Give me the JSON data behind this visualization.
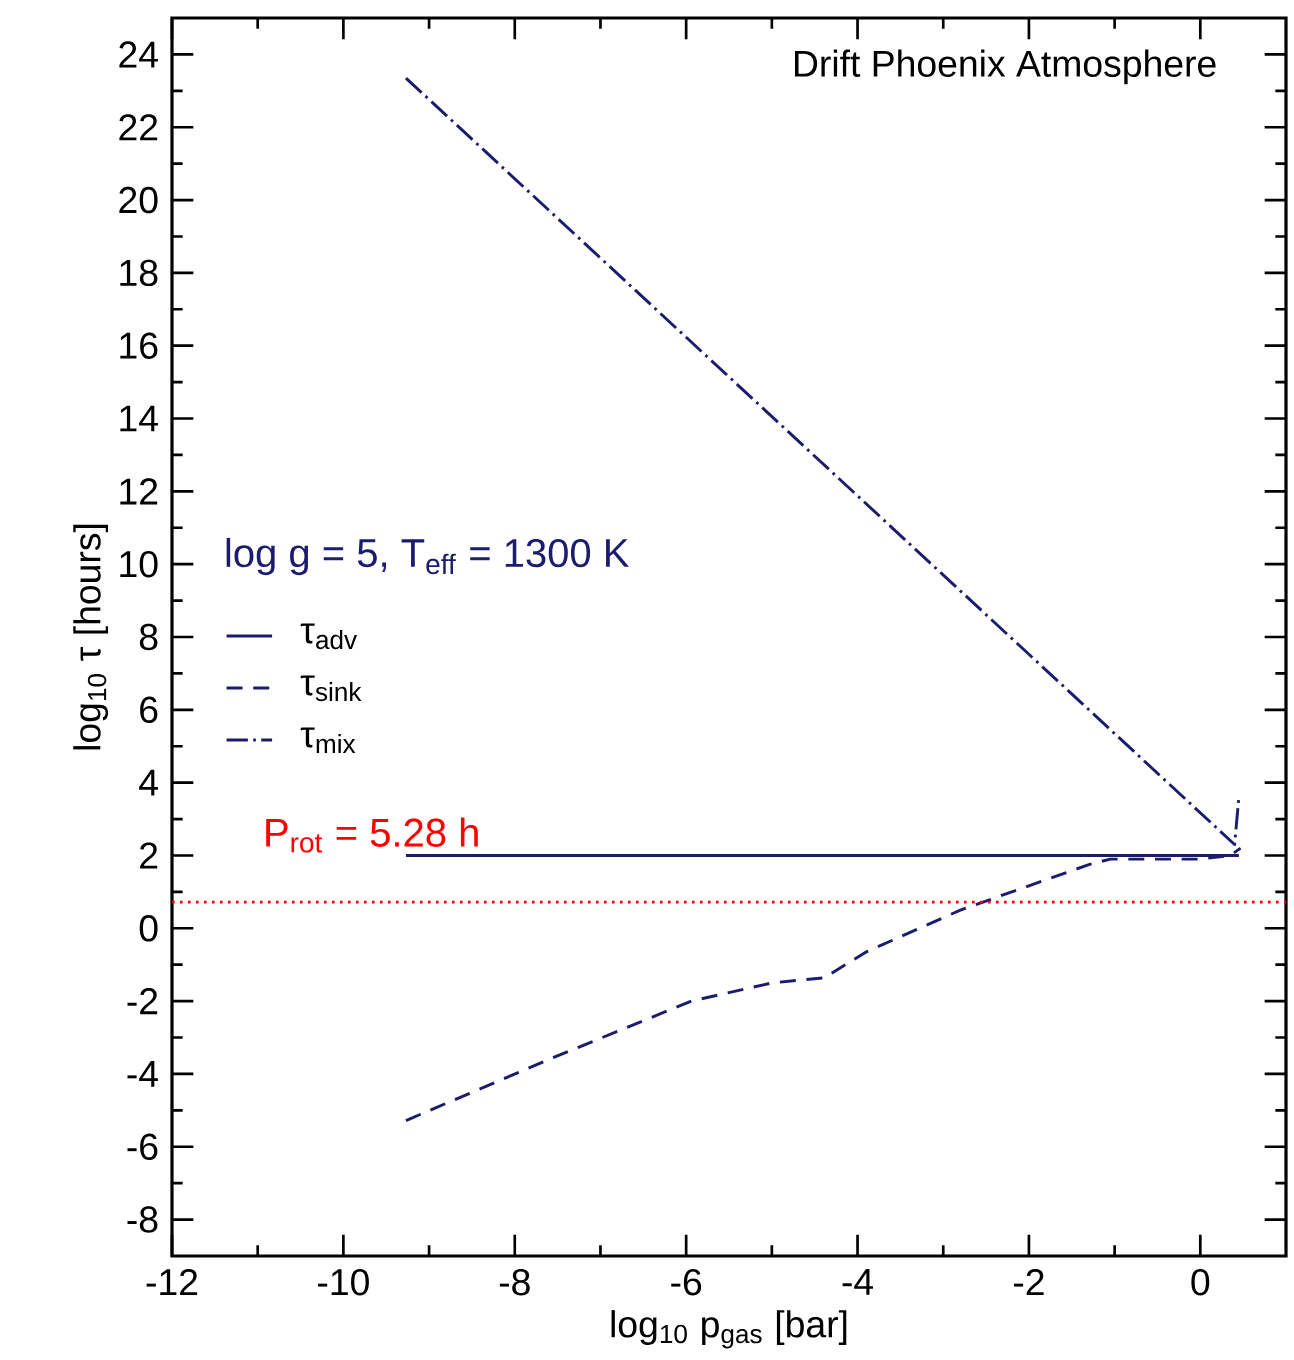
{
  "chart_data": {
    "type": "line",
    "title": "Drift Phoenix Atmosphere",
    "xlabel": "log$_{10}$ p$_{gas}$ [bar]",
    "ylabel": "log$_{10}$ τ [hours]",
    "annotations": [
      "log g = 5, T$_{eff}$ = 1300 K",
      "P$_{rot}$ = 5.28 h"
    ],
    "xlim": [
      -12,
      1
    ],
    "ylim": [
      -9,
      25
    ],
    "xticks": [
      -12,
      -10,
      -8,
      -6,
      -4,
      -2,
      0
    ],
    "yticks": [
      -8,
      -6,
      -4,
      -2,
      0,
      2,
      4,
      6,
      8,
      10,
      12,
      14,
      16,
      18,
      20,
      22,
      24
    ],
    "legend": "left",
    "marker": "none",
    "series": [
      {
        "name": "τ$_{adv}$",
        "color": "#1c1c6e",
        "line_style": "solid",
        "x": [
          -9.27,
          0.45
        ],
        "values": [
          2,
          2
        ]
      },
      {
        "name": "τ$_{sink}$",
        "color": "#1c1c6e",
        "line_style": "dashed",
        "x": [
          -9.27,
          -7.6,
          -5.94,
          -5.0,
          -4.39,
          -3.9,
          -2.8,
          -1.3,
          -1.05,
          0,
          0.35,
          0.47
        ],
        "values": [
          -5.28,
          -3.6,
          -2.0,
          -1.5,
          -1.36,
          -0.65,
          0.5,
          1.75,
          1.9,
          1.9,
          2.0,
          2.2
        ]
      },
      {
        "name": "τ$_{mix}$",
        "color": "#1c1c6e",
        "line_style": "dashdot",
        "x": [
          -9.27,
          0.4,
          0.45
        ],
        "values": [
          23.35,
          2.3,
          3.6
        ]
      }
    ],
    "ref_lines": [
      {
        "axis": "y",
        "value": 0.72,
        "color": "#ff0000",
        "line_style": "dotted"
      }
    ]
  }
}
